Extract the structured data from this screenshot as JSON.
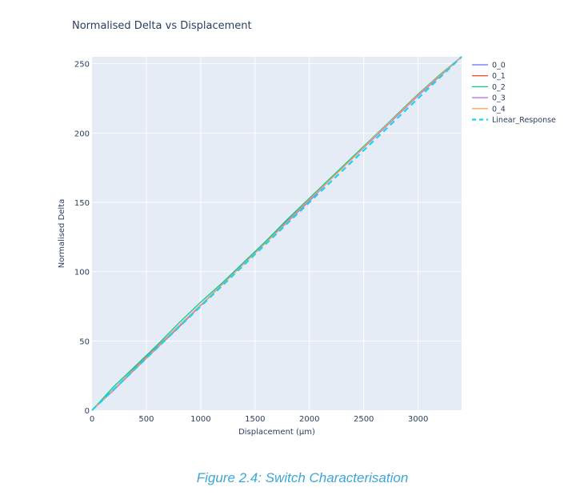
{
  "chart_data": {
    "type": "line",
    "title": "Normalised Delta vs Displacement",
    "xlabel": "Displacement (µm)",
    "ylabel": "Normalised Delta",
    "xlim": [
      0,
      3400
    ],
    "ylim": [
      0,
      255
    ],
    "xticks": [
      0,
      500,
      1000,
      1500,
      2000,
      2500,
      3000
    ],
    "yticks": [
      0,
      50,
      100,
      150,
      200,
      250
    ],
    "grid": true,
    "legend_position": "top-right",
    "x": [
      0,
      200,
      400,
      600,
      800,
      1000,
      1200,
      1400,
      1600,
      1800,
      2000,
      2200,
      2400,
      2600,
      2800,
      3000,
      3200,
      3400
    ],
    "series": [
      {
        "name": "0_0",
        "color": "#636efa",
        "dash": "solid",
        "values": [
          0,
          15,
          30.5,
          45.5,
          61,
          76,
          91,
          106,
          121,
          137,
          152,
          167,
          182,
          197,
          212,
          227,
          241,
          255
        ]
      },
      {
        "name": "0_1",
        "color": "#ef553b",
        "dash": "solid",
        "values": [
          0,
          15,
          31,
          46,
          61,
          76,
          91,
          106,
          121,
          136,
          152,
          167,
          182,
          197,
          213,
          228,
          242,
          255
        ]
      },
      {
        "name": "0_2",
        "color": "#00cc96",
        "dash": "solid",
        "values": [
          0,
          17,
          32,
          47,
          63,
          78,
          92,
          107,
          122,
          138,
          153,
          168,
          183,
          198,
          213,
          228,
          242,
          255
        ]
      },
      {
        "name": "0_3",
        "color": "#ab63fa",
        "dash": "solid",
        "values": [
          0,
          14.5,
          30,
          45,
          60,
          75.5,
          91,
          106,
          121,
          136,
          151,
          167,
          182,
          197,
          212,
          227,
          241,
          255
        ]
      },
      {
        "name": "0_4",
        "color": "#ffa15a",
        "dash": "solid",
        "values": [
          0,
          15,
          30.5,
          45.5,
          61,
          76,
          91,
          106,
          121,
          136.5,
          152,
          167,
          182,
          197.5,
          212.5,
          227.5,
          241.5,
          255
        ]
      },
      {
        "name": "Linear_Response",
        "color": "#19d3f3",
        "dash": "dash",
        "values": [
          0,
          15,
          30,
          45,
          60,
          75,
          90,
          105,
          120,
          135,
          150,
          165,
          180,
          195,
          210,
          225,
          240,
          255
        ]
      }
    ]
  },
  "caption": "Figure 2.4: Switch Characterisation"
}
